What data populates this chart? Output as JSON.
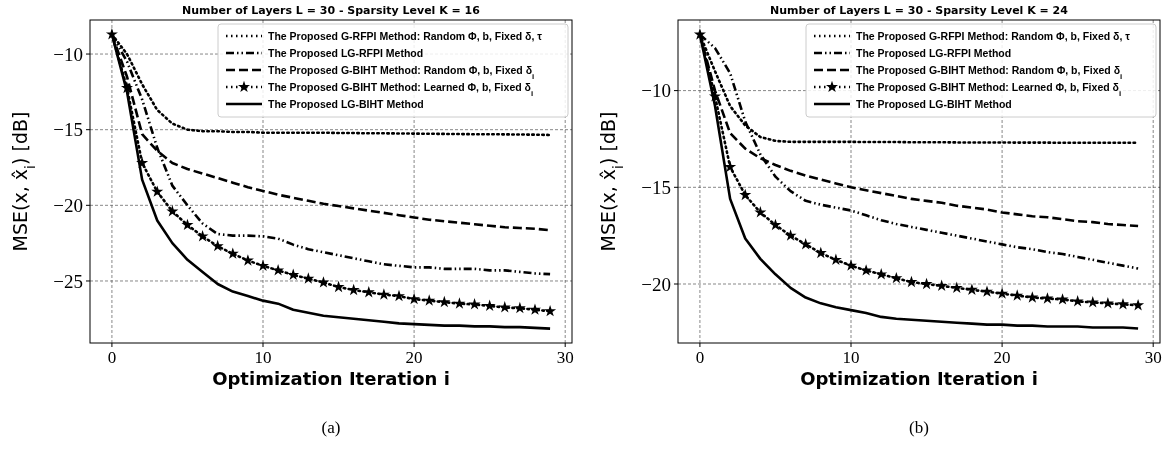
{
  "chart_data": [
    {
      "type": "line",
      "title": "Number of Layers L = 30 - Sparsity Level K = 16",
      "xlabel": "Optimization Iteration i",
      "ylabel": "MSE(x, x̂$_{i}$) [dB]",
      "annotations": [
        "(a)"
      ],
      "x": [
        0,
        1,
        2,
        3,
        4,
        5,
        6,
        7,
        8,
        9,
        10,
        11,
        12,
        13,
        14,
        15,
        16,
        17,
        18,
        19,
        20,
        21,
        22,
        23,
        24,
        25,
        26,
        27,
        28,
        29
      ],
      "xlim": [
        -1.45,
        30.45
      ],
      "xticks": [
        0,
        10,
        20,
        30
      ],
      "ylim": [
        -29.1,
        -7.75
      ],
      "yticks": [
        {
          "value": -10,
          "label": "−10"
        },
        {
          "value": -15,
          "label": "−15"
        },
        {
          "value": -20,
          "label": "−20"
        },
        {
          "value": -25,
          "label": "−25"
        }
      ],
      "grid": true,
      "legend": "top right",
      "series": [
        {
          "name": "The Proposed G-RFPI Method: Random Φ, b, Fixed δ, τ",
          "color": "#000000",
          "line_style": "dotted",
          "marker": "none",
          "values": [
            -8.7,
            -10.0,
            -12.0,
            -13.7,
            -14.6,
            -15.0,
            -15.1,
            -15.1,
            -15.15,
            -15.15,
            -15.2,
            -15.2,
            -15.2,
            -15.2,
            -15.2,
            -15.22,
            -15.22,
            -15.24,
            -15.24,
            -15.25,
            -15.26,
            -15.27,
            -15.28,
            -15.29,
            -15.3,
            -15.3,
            -15.31,
            -15.32,
            -15.33,
            -15.35
          ]
        },
        {
          "name": "The Proposed LG-RFPI Method",
          "color": "#000000",
          "line_style": "dashdotdot",
          "marker": "none",
          "values": [
            -8.7,
            -10.5,
            -13.0,
            -16.2,
            -18.7,
            -20.0,
            -21.2,
            -21.9,
            -22.0,
            -22.0,
            -22.05,
            -22.2,
            -22.6,
            -22.9,
            -23.1,
            -23.3,
            -23.5,
            -23.7,
            -23.9,
            -24.0,
            -24.1,
            -24.1,
            -24.2,
            -24.2,
            -24.2,
            -24.3,
            -24.3,
            -24.4,
            -24.5,
            -24.55
          ]
        },
        {
          "name": "The Proposed G-BIHT Method: Random Φ, b, Fixed δ$_{i}$",
          "color": "#000000",
          "line_style": "dashed",
          "marker": "none",
          "values": [
            -8.7,
            -11.5,
            -15.3,
            -16.4,
            -17.2,
            -17.6,
            -17.9,
            -18.2,
            -18.5,
            -18.8,
            -19.05,
            -19.3,
            -19.5,
            -19.7,
            -19.9,
            -20.05,
            -20.2,
            -20.35,
            -20.5,
            -20.65,
            -20.8,
            -20.95,
            -21.05,
            -21.15,
            -21.25,
            -21.35,
            -21.45,
            -21.5,
            -21.55,
            -21.65
          ]
        },
        {
          "name": "The Proposed G-BIHT Method: Learned Φ, b, Fixed δ$_{i}$",
          "color": "#000000",
          "line_style": "dotted",
          "marker": "star",
          "values": [
            -8.7,
            -12.25,
            -17.2,
            -19.1,
            -20.4,
            -21.3,
            -22.05,
            -22.7,
            -23.2,
            -23.65,
            -24.0,
            -24.3,
            -24.6,
            -24.85,
            -25.1,
            -25.4,
            -25.6,
            -25.75,
            -25.9,
            -26.0,
            -26.2,
            -26.3,
            -26.4,
            -26.5,
            -26.55,
            -26.65,
            -26.75,
            -26.8,
            -26.9,
            -27.0
          ]
        },
        {
          "name": "The Proposed LG-BIHT Method",
          "color": "#000000",
          "line_style": "solid",
          "marker": "none",
          "values": [
            -8.7,
            -12.5,
            -18.3,
            -21.0,
            -22.5,
            -23.6,
            -24.4,
            -25.2,
            -25.7,
            -26.0,
            -26.3,
            -26.5,
            -26.9,
            -27.1,
            -27.3,
            -27.4,
            -27.5,
            -27.6,
            -27.7,
            -27.8,
            -27.85,
            -27.9,
            -27.95,
            -27.95,
            -28.0,
            -28.0,
            -28.05,
            -28.05,
            -28.1,
            -28.15
          ]
        }
      ]
    },
    {
      "type": "line",
      "title": "Number of Layers L = 30 - Sparsity Level K = 24",
      "xlabel": "Optimization Iteration i",
      "ylabel": "MSE(x, x̂$_{i}$) [dB]",
      "annotations": [
        "(b)"
      ],
      "x": [
        0,
        1,
        2,
        3,
        4,
        5,
        6,
        7,
        8,
        9,
        10,
        11,
        12,
        13,
        14,
        15,
        16,
        17,
        18,
        19,
        20,
        21,
        22,
        23,
        24,
        25,
        26,
        27,
        28,
        29
      ],
      "xlim": [
        -1.45,
        30.45
      ],
      "xticks": [
        0,
        10,
        20,
        30
      ],
      "ylim": [
        -23.05,
        -6.35
      ],
      "yticks": [
        {
          "value": -10,
          "label": "−10"
        },
        {
          "value": -15,
          "label": "−15"
        },
        {
          "value": -20,
          "label": "−20"
        }
      ],
      "grid": true,
      "legend": "top right",
      "series": [
        {
          "name": "The Proposed G-RFPI Method: Random Φ, b, Fixed δ, τ",
          "color": "#000000",
          "line_style": "dotted",
          "marker": "none",
          "values": [
            -7.1,
            -9.0,
            -10.8,
            -11.8,
            -12.4,
            -12.6,
            -12.65,
            -12.65,
            -12.65,
            -12.65,
            -12.65,
            -12.66,
            -12.66,
            -12.66,
            -12.67,
            -12.67,
            -12.67,
            -12.68,
            -12.68,
            -12.68,
            -12.68,
            -12.69,
            -12.69,
            -12.69,
            -12.7,
            -12.7,
            -12.7,
            -12.7,
            -12.7,
            -12.7
          ]
        },
        {
          "name": "The Proposed LG-RFPI Method",
          "color": "#000000",
          "line_style": "dashdotdot",
          "marker": "none",
          "values": [
            -7.1,
            -7.8,
            -9.1,
            -11.6,
            -13.3,
            -14.45,
            -15.2,
            -15.7,
            -15.9,
            -16.05,
            -16.2,
            -16.45,
            -16.7,
            -16.9,
            -17.05,
            -17.2,
            -17.35,
            -17.5,
            -17.65,
            -17.8,
            -17.95,
            -18.1,
            -18.2,
            -18.35,
            -18.45,
            -18.6,
            -18.75,
            -18.9,
            -19.05,
            -19.2
          ]
        },
        {
          "name": "The Proposed G-BIHT Method: Random Φ, b, Fixed δ$_{i}$",
          "color": "#000000",
          "line_style": "dashed",
          "marker": "none",
          "values": [
            -7.1,
            -10.0,
            -12.2,
            -13.0,
            -13.5,
            -13.85,
            -14.15,
            -14.4,
            -14.6,
            -14.8,
            -15.0,
            -15.15,
            -15.3,
            -15.45,
            -15.6,
            -15.7,
            -15.8,
            -15.95,
            -16.05,
            -16.15,
            -16.3,
            -16.4,
            -16.5,
            -16.55,
            -16.65,
            -16.75,
            -16.8,
            -16.9,
            -16.95,
            -17.0
          ]
        },
        {
          "name": "The Proposed G-BIHT Method: Learned Φ, b, Fixed δ$_{i}$",
          "color": "#000000",
          "line_style": "dotted",
          "marker": "star",
          "values": [
            -7.1,
            -10.3,
            -13.95,
            -15.4,
            -16.3,
            -16.95,
            -17.5,
            -17.95,
            -18.4,
            -18.75,
            -19.05,
            -19.3,
            -19.5,
            -19.7,
            -19.9,
            -20.0,
            -20.1,
            -20.2,
            -20.3,
            -20.4,
            -20.5,
            -20.6,
            -20.7,
            -20.75,
            -20.8,
            -20.9,
            -20.95,
            -21.0,
            -21.05,
            -21.1
          ]
        },
        {
          "name": "The Proposed LG-BIHT Method",
          "color": "#000000",
          "line_style": "solid",
          "marker": "none",
          "values": [
            -7.1,
            -10.8,
            -15.6,
            -17.65,
            -18.7,
            -19.5,
            -20.2,
            -20.7,
            -21.0,
            -21.2,
            -21.35,
            -21.5,
            -21.7,
            -21.8,
            -21.85,
            -21.9,
            -21.95,
            -22.0,
            -22.05,
            -22.1,
            -22.1,
            -22.15,
            -22.15,
            -22.2,
            -22.2,
            -22.2,
            -22.25,
            -22.25,
            -22.25,
            -22.3
          ]
        }
      ]
    }
  ]
}
